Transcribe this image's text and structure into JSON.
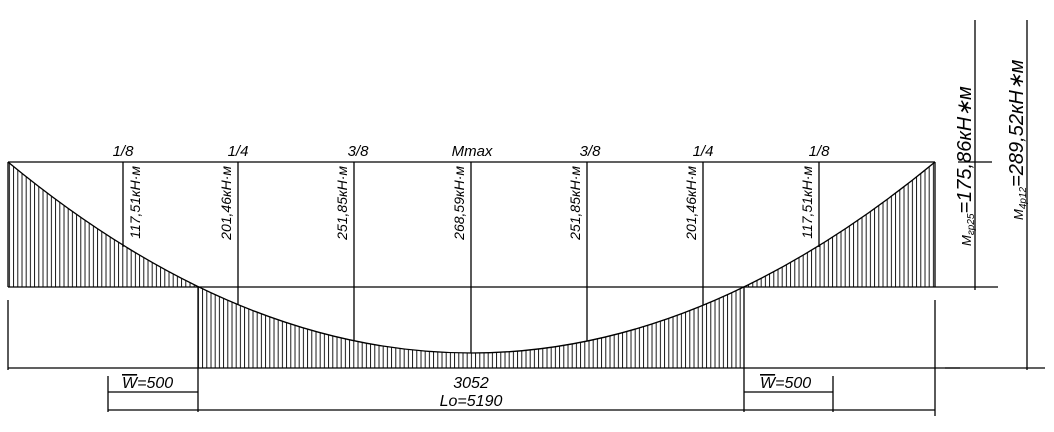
{
  "fractions": [
    "1/8",
    "1/4",
    "3/8",
    "Mmax",
    "3/8",
    "1/4",
    "1/8"
  ],
  "moments": [
    "117,51кН·м",
    "201,46кН·м",
    "251,85кН·м",
    "268,59кН·м",
    "251,85кН·м",
    "201,46кН·м",
    "117,51кН·м"
  ],
  "dimensions": {
    "support_left": {
      "symbol": "W",
      "value": "=500"
    },
    "span": "3052",
    "support_right": {
      "symbol": "W",
      "value": "=500"
    },
    "total": "Lo=5190"
  },
  "envelopes": [
    {
      "symbol": "M",
      "subscript": "гр25",
      "value": "=175,86кН∗м"
    },
    {
      "symbol": "M",
      "subscript": "4р12",
      "value": "=289,52кН∗м"
    }
  ]
}
